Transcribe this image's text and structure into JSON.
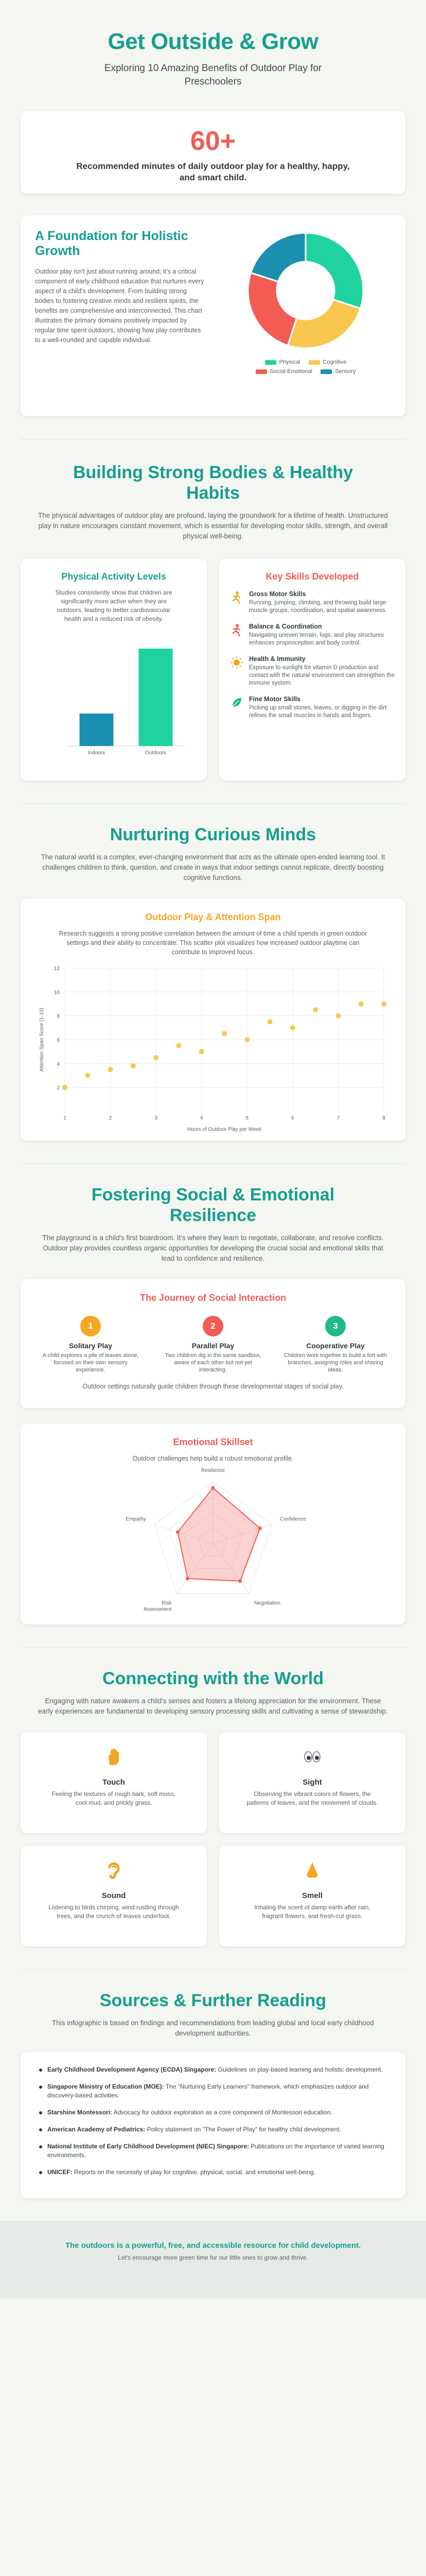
{
  "header": {
    "title": "Get Outside & Grow",
    "subtitle": "Exploring 10 Amazing Benefits of Outdoor Play for Preschoolers"
  },
  "stat": {
    "number": "60+",
    "label": "Recommended minutes of daily outdoor play for a healthy, happy, and smart child."
  },
  "foundation": {
    "title": "A Foundation for Holistic Growth",
    "text": "Outdoor play isn't just about running around; it's a critical component of early childhood education that nurtures every aspect of a child's development. From building strong bodies to fostering creative minds and resilient spirits, the benefits are comprehensive and interconnected. This chart illustrates the primary domains positively impacted by regular time spent outdoors, showing how play contributes to a well-rounded and capable individual."
  },
  "physical": {
    "title": "Building Strong Bodies & Healthy Habits",
    "desc": "The physical advantages of outdoor play are profound, laying the groundwork for a lifetime of health. Unstructured play in nature encourages constant movement, which is essential for developing motor skills, strength, and overall physical well-being.",
    "activity_title": "Physical Activity Levels",
    "activity_text": "Studies consistently show that children are significantly more active when they are outdoors, leading to better cardiovascular health and a reduced risk of obesity.",
    "skills_title": "Key Skills Developed",
    "skills": [
      {
        "icon": "running-figure-icon",
        "title": "Gross Motor Skills",
        "desc": "Running, jumping, climbing, and throwing build large muscle groups, coordination, and spatial awareness."
      },
      {
        "icon": "balance-figure-icon",
        "title": "Balance & Coordination",
        "desc": "Navigating uneven terrain, logs, and play structures enhances proprioception and body control."
      },
      {
        "icon": "sun-icon",
        "title": "Health & Immunity",
        "desc": "Exposure to sunlight for vitamin D production and contact with the natural environment can strengthen the immune system."
      },
      {
        "icon": "leaf-icon",
        "title": "Fine Motor Skills",
        "desc": "Picking up small stones, leaves, or digging in the dirt refines the small muscles in hands and fingers."
      }
    ]
  },
  "minds": {
    "title": "Nurturing Curious Minds",
    "desc": "The natural world is a complex, ever-changing environment that acts as the ultimate open-ended learning tool. It challenges children to think, question, and create in ways that indoor settings cannot replicate, directly boosting cognitive functions.",
    "chart_title": "Outdoor Play & Attention Span",
    "chart_text": "Research suggests a strong positive correlation between the amount of time a child spends in green outdoor settings and their ability to concentrate. This scatter plot visualizes how increased outdoor playtime can contribute to improved focus."
  },
  "social": {
    "title": "Fostering Social & Emotional Resilience",
    "desc": "The playground is a child's first boardroom. It's where they learn to negotiate, collaborate, and resolve conflicts. Outdoor play provides countless organic opportunities for developing the crucial social and emotional skills that lead to confidence and resilience.",
    "journey_title": "The Journey of Social Interaction",
    "stages": [
      {
        "num": "1",
        "title": "Solitary Play",
        "desc": "A child explores a pile of leaves alone, focused on their own sensory experience."
      },
      {
        "num": "2",
        "title": "Parallel Play",
        "desc": "Two children dig in the same sandbox, aware of each other but not yet interacting."
      },
      {
        "num": "3",
        "title": "Cooperative Play",
        "desc": "Children work together to build a fort with branches, assigning roles and sharing ideas."
      }
    ],
    "journey_note": "Outdoor settings naturally guide children through these developmental stages of social play.",
    "skillset_title": "Emotional Skillset",
    "skillset_text": "Outdoor challenges help build a robust emotional profile."
  },
  "senses": {
    "title": "Connecting with the World",
    "desc": "Engaging with nature awakens a child's senses and fosters a lifelong appreciation for the environment. These early experiences are fundamental to developing sensory processing skills and cultivating a sense of stewardship.",
    "items": [
      {
        "icon": "hand-icon",
        "title": "Touch",
        "desc": "Feeling the textures of rough bark, soft moss, cool mud, and prickly grass."
      },
      {
        "icon": "eyes-icon",
        "title": "Sight",
        "desc": "Observing the vibrant colors of flowers, the patterns of leaves, and the movement of clouds."
      },
      {
        "icon": "ear-icon",
        "title": "Sound",
        "desc": "Listening to birds chirping, wind rustling through trees, and the crunch of leaves underfoot."
      },
      {
        "icon": "nose-icon",
        "title": "Smell",
        "desc": "Inhaling the scent of damp earth after rain, fragrant flowers, and fresh-cut grass."
      }
    ]
  },
  "sources": {
    "title": "Sources & Further Reading",
    "desc": "This infographic is based on findings and recommendations from leading global and local early childhood development authorities.",
    "items": [
      {
        "name": "Early Childhood Development Agency (ECDA) Singapore:",
        "text": " Guidelines on play-based learning and holistic development."
      },
      {
        "name": "Singapore Ministry of Education (MOE):",
        "text": " The \"Nurturing Early Learners\" framework, which emphasizes outdoor and discovery-based activities."
      },
      {
        "name": "Starshine Montessori:",
        "text": " Advocacy for outdoor exploration as a core component of Montessori education."
      },
      {
        "name": "American Academy of Pediatrics:",
        "text": " Policy statement on \"The Power of Play\" for healthy child development."
      },
      {
        "name": "National Institute of Early Childhood Development (NIEC) Singapore:",
        "text": " Publications on the importance of varied learning environments."
      },
      {
        "name": "UNICEF:",
        "text": " Reports on the necessity of play for cognitive, physical, social, and emotional well-being."
      }
    ]
  },
  "footer": {
    "main": "The outdoors is a powerful, free, and accessible resource for child development.",
    "sub": "Let's encourage more green time for our little ones to grow and thrive."
  },
  "colors": {
    "teal": "#1abc9c",
    "yellow": "#f9c74f",
    "red": "#f25c54",
    "blue": "#1b8fb0"
  },
  "chart_data": [
    {
      "type": "pie",
      "categories": [
        "Physical",
        "Cognitive",
        "Social-Emotional",
        "Sensory"
      ],
      "values": [
        30,
        25,
        25,
        20
      ],
      "colors": [
        "#1fd2a0",
        "#f9c74f",
        "#f25c54",
        "#1b8fb0"
      ],
      "legend": "bottom"
    },
    {
      "type": "bar",
      "categories": [
        "Indoors",
        "Outdoors"
      ],
      "values": [
        15,
        45
      ],
      "colors": [
        "#1b8fb0",
        "#1fd2a0"
      ],
      "ylim": [
        0,
        50
      ]
    },
    {
      "type": "scatter",
      "xlabel": "Hours of Outdoor Play per Week",
      "ylabel": "Attention Span Score (1-10)",
      "xlim": [
        1,
        8
      ],
      "ylim": [
        0,
        12
      ],
      "xticks": [
        1,
        2,
        3,
        4,
        5,
        6,
        7,
        8
      ],
      "yticks": [
        2,
        4,
        6,
        8,
        10,
        12
      ],
      "points": [
        {
          "x": 1,
          "y": 2
        },
        {
          "x": 1.5,
          "y": 3
        },
        {
          "x": 2,
          "y": 3.5
        },
        {
          "x": 2.5,
          "y": 3.8
        },
        {
          "x": 3,
          "y": 4.5
        },
        {
          "x": 3.5,
          "y": 5.5
        },
        {
          "x": 4,
          "y": 5
        },
        {
          "x": 4.5,
          "y": 6.5
        },
        {
          "x": 5,
          "y": 6
        },
        {
          "x": 5.5,
          "y": 7.5
        },
        {
          "x": 6,
          "y": 7
        },
        {
          "x": 6.5,
          "y": 8.5
        },
        {
          "x": 7,
          "y": 8
        },
        {
          "x": 7.5,
          "y": 9
        },
        {
          "x": 8,
          "y": 9
        }
      ],
      "color": "#f9c74f"
    },
    {
      "type": "radar",
      "categories": [
        "Resilience",
        "Confidence",
        "Negotiation",
        "Risk Assessment",
        "Empathy"
      ],
      "values": [
        9,
        8,
        7.5,
        7,
        6
      ],
      "max": 10,
      "color": "#f25c54"
    }
  ]
}
